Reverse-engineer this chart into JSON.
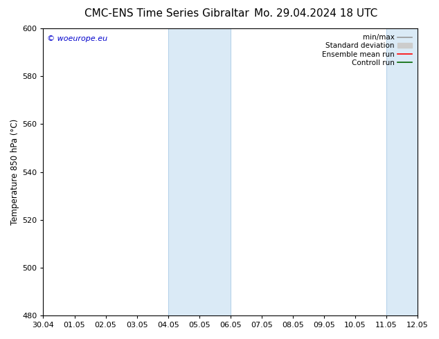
{
  "title_left": "CMC-ENS Time Series Gibraltar",
  "title_right": "Mo. 29.04.2024 18 UTC",
  "ylabel": "Temperature 850 hPa (°C)",
  "xlabel_ticks": [
    "30.04",
    "01.05",
    "02.05",
    "03.05",
    "04.05",
    "05.05",
    "06.05",
    "07.05",
    "08.05",
    "09.05",
    "10.05",
    "11.05",
    "12.05"
  ],
  "ylim": [
    480,
    600
  ],
  "yticks": [
    480,
    500,
    520,
    540,
    560,
    580,
    600
  ],
  "xlim": [
    0,
    12
  ],
  "shaded_regions": [
    {
      "xmin": 4,
      "xmax": 6,
      "color": "#daeaf6"
    },
    {
      "xmin": 11,
      "xmax": 12,
      "color": "#daeaf6"
    }
  ],
  "shaded_border_color": "#b0cfe8",
  "watermark": "© woeurope.eu",
  "watermark_color": "#0000cc",
  "legend_items": [
    {
      "label": "min/max",
      "color": "#999999",
      "lw": 1.2,
      "style": "solid",
      "type": "line"
    },
    {
      "label": "Standard deviation",
      "color": "#cccccc",
      "lw": 5,
      "style": "solid",
      "type": "band"
    },
    {
      "label": "Ensemble mean run",
      "color": "#ff0000",
      "lw": 1.2,
      "style": "solid",
      "type": "line"
    },
    {
      "label": "Controll run",
      "color": "#006600",
      "lw": 1.2,
      "style": "solid",
      "type": "line"
    }
  ],
  "bg_color": "#ffffff",
  "spine_color": "#000000",
  "tick_color": "#000000",
  "title_fontsize": 11,
  "tick_fontsize": 8,
  "ylabel_fontsize": 8.5,
  "legend_fontsize": 7.5,
  "watermark_fontsize": 8
}
